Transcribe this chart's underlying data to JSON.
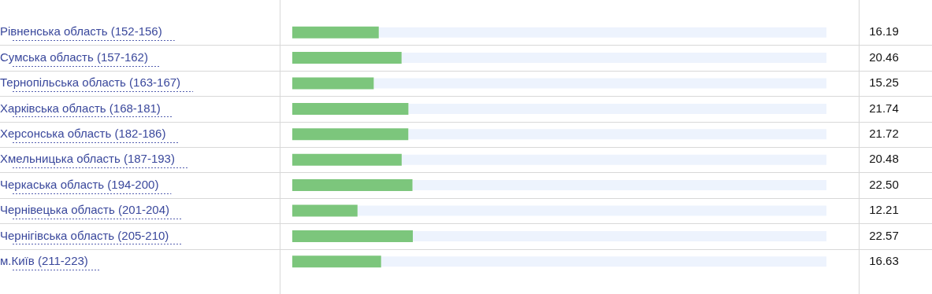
{
  "chart_data": {
    "type": "bar",
    "orientation": "horizontal",
    "categories": [
      "Рівненська область (152-156)",
      "Сумська область (157-162)",
      "Тернопільська область (163-167)",
      "Харківська область (168-181)",
      "Херсонська область (182-186)",
      "Хмельницька область (187-193)",
      "Черкаська область (194-200)",
      "Чернівецька область (201-204)",
      "Чернігівська область (205-210)",
      "м.Київ (211-223)"
    ],
    "series": [
      {
        "color": "#7cc67c",
        "values": [
          16.19,
          20.46,
          15.25,
          21.74,
          21.72,
          20.48,
          22.5,
          12.21,
          22.57,
          16.63
        ],
        "value_labels": [
          "16.19",
          "20.46",
          "15.25",
          "21.74",
          "21.72",
          "20.48",
          "22.50",
          "12.21",
          "22.57",
          "16.63"
        ]
      },
      {
        "color": "#edf3fd",
        "values": [
          83.81,
          79.54,
          84.75,
          78.26,
          78.28,
          79.52,
          77.5,
          87.79,
          77.43,
          83.37
        ]
      }
    ],
    "stacked": true,
    "xlim": [
      0,
      100
    ],
    "tick_labels": "y",
    "grid": "y"
  }
}
